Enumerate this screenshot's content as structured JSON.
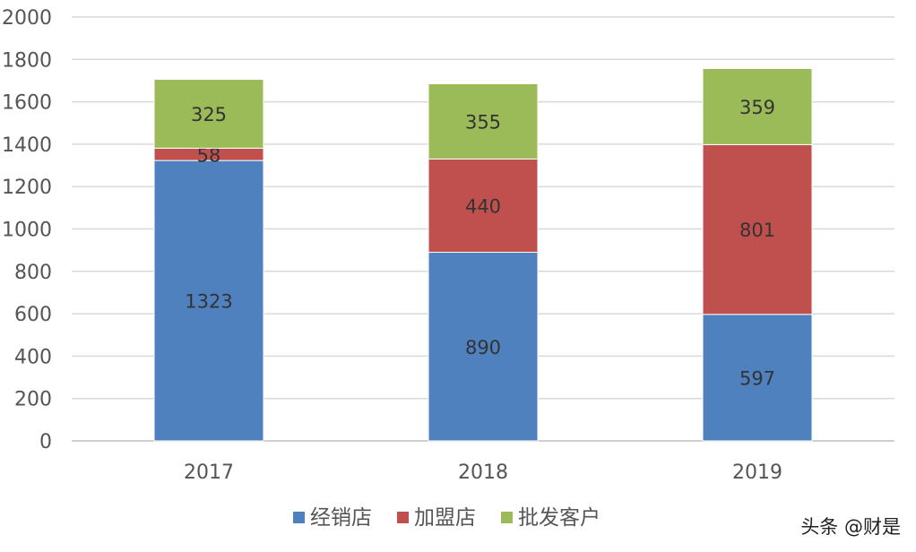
{
  "chart_data": {
    "type": "bar",
    "stacked": true,
    "categories": [
      "2017",
      "2018",
      "2019"
    ],
    "series": [
      {
        "name": "经销店",
        "color": "#4e81bd",
        "values": [
          1323,
          890,
          597
        ]
      },
      {
        "name": "加盟店",
        "color": "#c0504d",
        "values": [
          58,
          440,
          801
        ]
      },
      {
        "name": "批发客户",
        "color": "#9bbb59",
        "values": [
          325,
          355,
          359
        ]
      }
    ],
    "ylim": [
      0,
      2000
    ],
    "yticks": [
      0,
      200,
      400,
      600,
      800,
      1000,
      1200,
      1400,
      1600,
      1800,
      2000
    ],
    "grid": true,
    "legend_position": "bottom-center"
  },
  "watermark": "头条 @财是"
}
